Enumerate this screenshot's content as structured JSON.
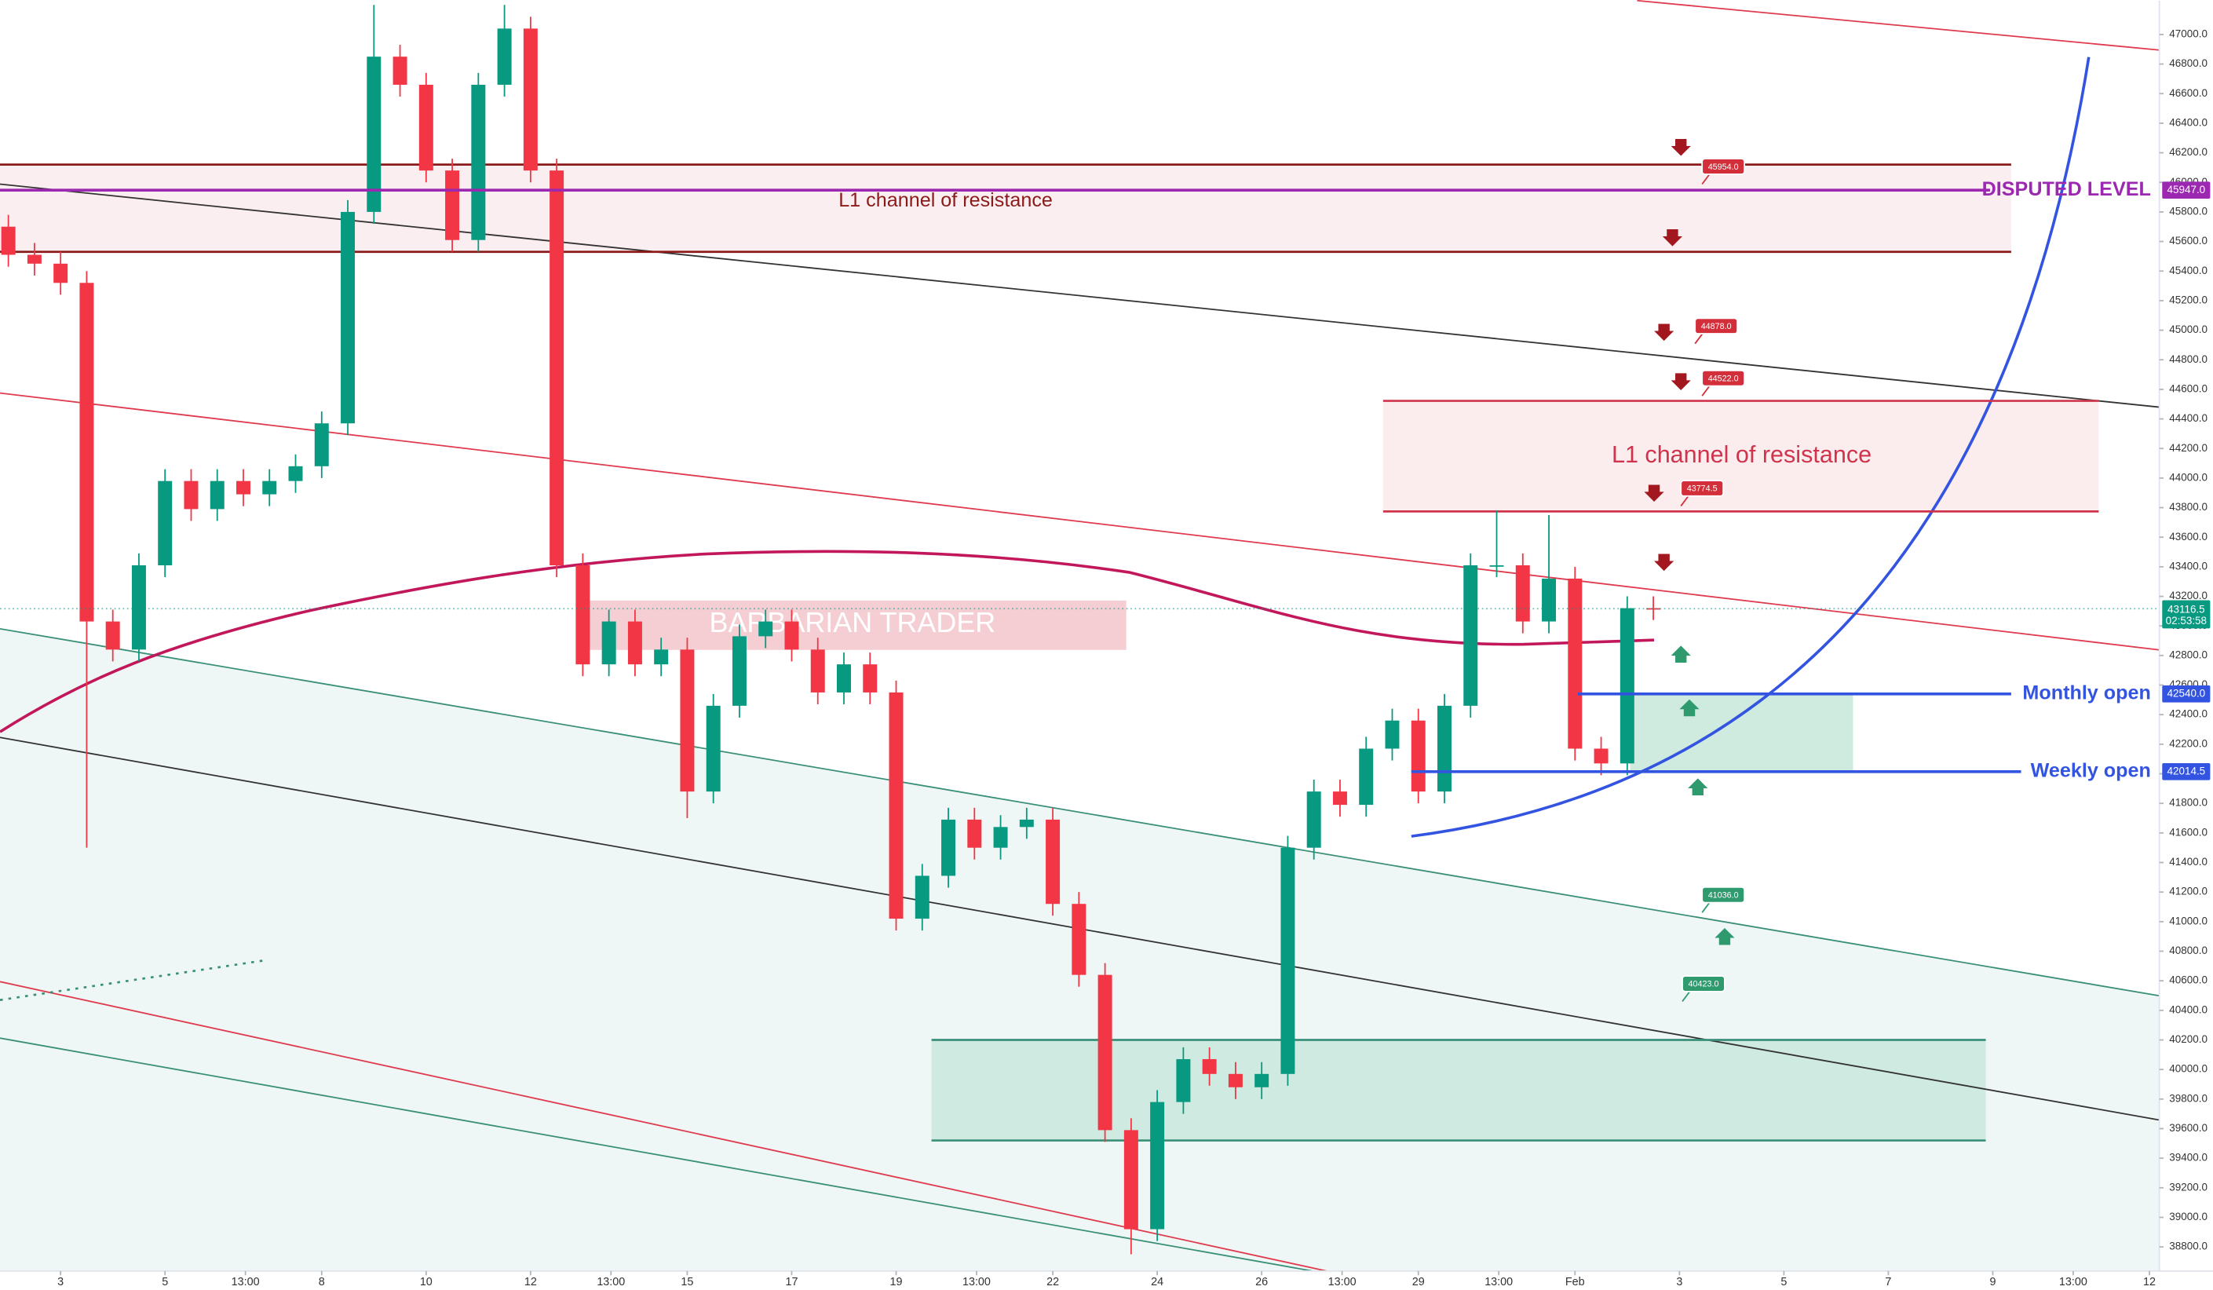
{
  "chart_data": {
    "type": "candlestick",
    "watermark": "BARBARIAN TRADER",
    "up_color": "#089981",
    "down_color": "#f23645",
    "x": [
      2,
      2.5,
      3,
      3.5,
      4,
      4.5,
      5,
      5.5,
      6,
      6.5,
      7,
      7.5,
      8,
      8.5,
      9,
      9.5,
      10,
      10.5,
      11,
      11.5,
      12,
      12.5,
      13,
      13.5,
      14,
      14.5,
      15,
      15.5,
      16,
      16.5,
      17,
      17.5,
      18,
      18.5,
      19,
      19.5,
      20,
      20.5,
      21,
      21.5,
      22,
      22.5,
      23,
      23.5,
      24,
      24.5,
      25,
      25.5,
      26,
      26.5,
      27,
      27.5,
      28,
      28.5,
      29,
      29.5,
      30,
      30.5,
      31,
      31.5,
      32,
      32.5,
      33,
      33.5
    ],
    "open": [
      45700,
      45510,
      45450,
      45320,
      43030,
      42840,
      43410,
      43980,
      43790,
      43980,
      43890,
      43980,
      44080,
      44370,
      45800,
      46850,
      46660,
      46080,
      45610,
      46660,
      47040,
      46080,
      43410,
      42740,
      43030,
      42740,
      42840,
      41880,
      42460,
      42930,
      43030,
      42840,
      42550,
      42740,
      42550,
      41020,
      41310,
      41690,
      41500,
      41640,
      41690,
      41120,
      40640,
      39590,
      38920,
      39780,
      40070,
      39970,
      39880,
      39970,
      41500,
      41880,
      41790,
      42170,
      42360,
      41880,
      42460,
      43410,
      43410,
      43030,
      43320,
      42170,
      42070,
      43120
    ],
    "high": [
      45780,
      45590,
      45530,
      45400,
      43110,
      43490,
      44060,
      44060,
      44060,
      44060,
      44060,
      44160,
      44450,
      45880,
      47200,
      46930,
      46740,
      46160,
      46740,
      47200,
      47120,
      46160,
      43490,
      43110,
      43110,
      42920,
      42920,
      42540,
      43010,
      43110,
      43110,
      42920,
      42820,
      42820,
      42630,
      41390,
      41770,
      41770,
      41720,
      41770,
      41770,
      41200,
      40720,
      39670,
      39860,
      40150,
      40150,
      40050,
      40050,
      41580,
      41960,
      41960,
      42250,
      42440,
      42440,
      42540,
      43490,
      43780,
      43490,
      43750,
      43400,
      42250,
      43200,
      43200
    ],
    "low": [
      45430,
      45370,
      45240,
      41500,
      42760,
      42760,
      43330,
      43710,
      43710,
      43810,
      43810,
      43900,
      44000,
      44290,
      45720,
      46580,
      46000,
      45530,
      45530,
      46580,
      46000,
      43330,
      42660,
      42660,
      42660,
      42660,
      41700,
      41800,
      42380,
      42850,
      42760,
      42470,
      42470,
      42470,
      40940,
      40940,
      41230,
      41420,
      41420,
      41560,
      41040,
      40560,
      39510,
      38750,
      38840,
      39700,
      39890,
      39800,
      39800,
      39890,
      41420,
      41710,
      41710,
      42090,
      41800,
      41800,
      42380,
      43330,
      42950,
      42950,
      42090,
      41990,
      41990,
      43040
    ],
    "close": [
      45510,
      45450,
      45320,
      43030,
      42840,
      43410,
      43980,
      43790,
      43980,
      43890,
      43980,
      44080,
      44370,
      45800,
      46850,
      46660,
      46080,
      45610,
      46660,
      47040,
      46080,
      43410,
      42740,
      43030,
      42740,
      42840,
      41880,
      42460,
      42930,
      43030,
      42840,
      42550,
      42740,
      42550,
      41020,
      41310,
      41690,
      41500,
      41640,
      41690,
      41120,
      40640,
      39590,
      38920,
      39780,
      40070,
      39970,
      39880,
      39970,
      41500,
      41880,
      41790,
      42170,
      42360,
      41880,
      42460,
      43410,
      43410,
      43030,
      43320,
      42170,
      42070,
      43120,
      43116.5
    ],
    "xlim": [
      1.84,
      43.19
    ],
    "ylim": [
      38637,
      47229
    ],
    "xticks": [
      3,
      5,
      {
        "value": 6.54,
        "label": "13:00"
      },
      8,
      10,
      12,
      {
        "value": 13.54,
        "label": "13:00"
      },
      15,
      17,
      19,
      {
        "value": 20.54,
        "label": "13:00"
      },
      22,
      24,
      26,
      {
        "value": 27.54,
        "label": "13:00"
      },
      29,
      {
        "value": 30.54,
        "label": "13:00"
      },
      {
        "value": 32,
        "label": "Feb"
      },
      {
        "value": 34,
        "label": "3"
      },
      {
        "value": 36,
        "label": "5"
      },
      {
        "value": 38,
        "label": "7"
      },
      {
        "value": 40,
        "label": "9"
      },
      {
        "value": 41.54,
        "label": "13:00"
      },
      {
        "value": 43,
        "label": "12"
      }
    ],
    "yticks": [
      {
        "value": 38800,
        "label": "38800.0"
      },
      {
        "value": 39000,
        "label": "39000.0"
      },
      {
        "value": 39200,
        "label": "39200.0"
      },
      {
        "value": 39400,
        "label": "39400.0"
      },
      {
        "value": 39600,
        "label": "39600.0"
      },
      {
        "value": 39800,
        "label": "39800.0"
      },
      {
        "value": 40000,
        "label": "40000.0"
      },
      {
        "value": 40200,
        "label": "40200.0"
      },
      {
        "value": 40400,
        "label": "40400.0"
      },
      {
        "value": 40600,
        "label": "40600.0"
      },
      {
        "value": 40800,
        "label": "40800.0"
      },
      {
        "value": 41000,
        "label": "41000.0"
      },
      {
        "value": 41200,
        "label": "41200.0"
      },
      {
        "value": 41400,
        "label": "41400.0"
      },
      {
        "value": 41600,
        "label": "41600.0"
      },
      {
        "value": 41800,
        "label": "41800.0"
      },
      {
        "value": 42000,
        "label": "42000.0"
      },
      {
        "value": 42200,
        "label": "42200.0"
      },
      {
        "value": 42400,
        "label": "42400.0"
      },
      {
        "value": 42600,
        "label": "42600.0"
      },
      {
        "value": 42800,
        "label": "42800.0"
      },
      {
        "value": 43000,
        "label": "43000.0"
      },
      {
        "value": 43200,
        "label": "43200.0"
      },
      {
        "value": 43400,
        "label": "43400.0"
      },
      {
        "value": 43600,
        "label": "43600.0"
      },
      {
        "value": 43800,
        "label": "43800.0"
      },
      {
        "value": 44000,
        "label": "44000.0"
      },
      {
        "value": 44200,
        "label": "44200.0"
      },
      {
        "value": 44400,
        "label": "44400.0"
      },
      {
        "value": 44600,
        "label": "44600.0"
      },
      {
        "value": 44800,
        "label": "44800.0"
      },
      {
        "value": 45000,
        "label": "45000.0"
      },
      {
        "value": 45200,
        "label": "45200.0"
      },
      {
        "value": 45400,
        "label": "45400.0"
      },
      {
        "value": 45600,
        "label": "45600.0"
      },
      {
        "value": 45800,
        "label": "45800.0"
      },
      {
        "value": 46000,
        "label": "46000.0"
      },
      {
        "value": 46200,
        "label": "46200.0"
      },
      {
        "value": 46400,
        "label": "46400.0"
      },
      {
        "value": 46600,
        "label": "46600.0"
      },
      {
        "value": 46800,
        "label": "46800.0"
      },
      {
        "value": 47000,
        "label": "47000.0"
      }
    ],
    "zones": [
      {
        "label": "L1 channel of resistance",
        "top": 46120,
        "bottom": 45530,
        "color": "#8b1a1a"
      },
      {
        "label": "L1 channel of resistance",
        "top": 44522,
        "bottom": 43774.5,
        "color": "#d0344d"
      },
      {
        "top": 40200,
        "bottom": 39520,
        "color": "#3a8f78"
      }
    ],
    "levels": [
      {
        "name": "DISPUTED LEVEL",
        "value": 45947,
        "tag": "45947.0",
        "color": "#9c27b0"
      },
      {
        "name": "Monthly open",
        "value": 42540,
        "tag": "42540.0",
        "color": "#3354e0"
      },
      {
        "name": "Weekly open",
        "value": 42014.5,
        "tag": "42014.5",
        "color": "#3354e0"
      }
    ],
    "last_price": {
      "value": 43116.5,
      "tag": "43116.5",
      "countdown": "02:53:58"
    },
    "price_tags": [
      {
        "value": 45954,
        "label": "45954.0"
      },
      {
        "value": 44878,
        "label": "44878.0"
      },
      {
        "value": 44522,
        "label": "44522.0"
      },
      {
        "value": 43774.5,
        "label": "43774.5"
      },
      {
        "value": 41036,
        "label": "41036.0"
      },
      {
        "value": 40423,
        "label": "40423.0"
      }
    ]
  }
}
